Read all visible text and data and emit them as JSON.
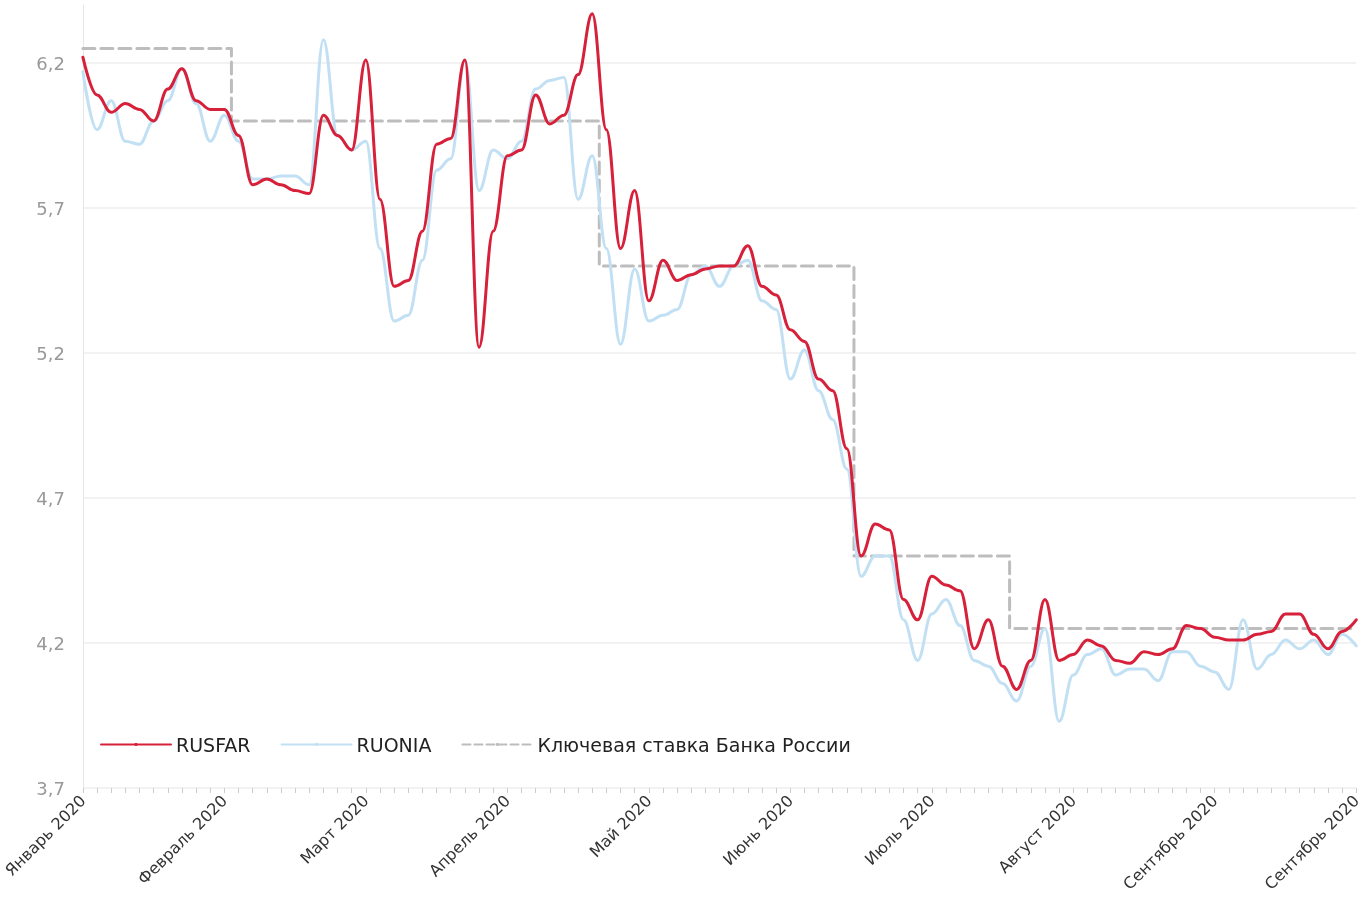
{
  "chart_data": {
    "type": "line",
    "categories": [
      "Январь 2020",
      null,
      null,
      null,
      null,
      null,
      null,
      null,
      null,
      null,
      "Февраль 2020",
      null,
      null,
      null,
      null,
      null,
      null,
      null,
      null,
      null,
      "Март 2020",
      null,
      null,
      null,
      null,
      null,
      null,
      null,
      null,
      null,
      "Апрель 2020",
      null,
      null,
      null,
      null,
      null,
      null,
      null,
      null,
      null,
      "Май 2020",
      null,
      null,
      null,
      null,
      null,
      null,
      null,
      null,
      null,
      "Июнь 2020",
      null,
      null,
      null,
      null,
      null,
      null,
      null,
      null,
      null,
      "Июль 2020",
      null,
      null,
      null,
      null,
      null,
      null,
      null,
      null,
      null,
      "Август 2020",
      null,
      null,
      null,
      null,
      null,
      null,
      null,
      null,
      null,
      "Сентябрь 2020",
      null,
      null,
      null,
      null,
      null,
      null,
      null,
      null,
      null,
      "Сентябрь 2020"
    ],
    "series": [
      {
        "name": "RUSFAR",
        "color": "#d7203a",
        "values": [
          6.22,
          6.09,
          6.03,
          6.06,
          6.04,
          6.0,
          6.11,
          6.18,
          6.07,
          6.04,
          6.04,
          5.95,
          5.78,
          5.8,
          5.78,
          5.76,
          5.75,
          6.02,
          5.95,
          5.9,
          6.21,
          5.73,
          5.43,
          5.45,
          5.62,
          5.92,
          5.94,
          6.21,
          5.22,
          5.62,
          5.88,
          5.9,
          6.09,
          5.99,
          6.02,
          6.16,
          6.37,
          5.97,
          5.56,
          5.76,
          5.38,
          5.52,
          5.45,
          5.47,
          5.49,
          5.5,
          5.5,
          5.57,
          5.43,
          5.4,
          5.28,
          5.24,
          5.11,
          5.07,
          4.87,
          4.5,
          4.61,
          4.59,
          4.35,
          4.28,
          4.43,
          4.4,
          4.38,
          4.18,
          4.28,
          4.12,
          4.04,
          4.14,
          4.35,
          4.14,
          4.16,
          4.21,
          4.19,
          4.14,
          4.13,
          4.17,
          4.16,
          4.18,
          4.26,
          4.25,
          4.22,
          4.21,
          4.21,
          4.23,
          4.24,
          4.3,
          4.3,
          4.23,
          4.18,
          4.24,
          4.28
        ]
      },
      {
        "name": "RUONIA",
        "color": "#c2e0f4",
        "values": [
          6.17,
          5.97,
          6.07,
          5.93,
          5.92,
          6.0,
          6.07,
          6.18,
          6.06,
          5.93,
          6.02,
          5.93,
          5.8,
          5.8,
          5.81,
          5.81,
          5.78,
          6.28,
          5.95,
          5.9,
          5.93,
          5.56,
          5.31,
          5.33,
          5.52,
          5.83,
          5.87,
          6.21,
          5.76,
          5.9,
          5.87,
          5.93,
          6.11,
          6.14,
          6.15,
          5.73,
          5.88,
          5.56,
          5.23,
          5.49,
          5.31,
          5.33,
          5.35,
          5.47,
          5.5,
          5.43,
          5.5,
          5.52,
          5.38,
          5.35,
          5.11,
          5.21,
          5.07,
          4.97,
          4.8,
          4.43,
          4.5,
          4.5,
          4.28,
          4.14,
          4.3,
          4.35,
          4.26,
          4.14,
          4.12,
          4.06,
          4.0,
          4.12,
          4.25,
          3.93,
          4.09,
          4.16,
          4.18,
          4.09,
          4.11,
          4.11,
          4.07,
          4.17,
          4.17,
          4.12,
          4.1,
          4.04,
          4.28,
          4.11,
          4.16,
          4.21,
          4.18,
          4.21,
          4.16,
          4.23,
          4.19
        ]
      },
      {
        "name": "Ключевая ставка Банка России",
        "color": "#bdbdbd",
        "type": "step",
        "line_style": "dashed",
        "values": [
          6.25,
          6.25,
          6.25,
          6.25,
          6.25,
          6.25,
          6.25,
          6.25,
          6.25,
          6.25,
          6.25,
          6.0,
          6.0,
          6.0,
          6.0,
          6.0,
          6.0,
          6.0,
          6.0,
          6.0,
          6.0,
          6.0,
          6.0,
          6.0,
          6.0,
          6.0,
          6.0,
          6.0,
          6.0,
          6.0,
          6.0,
          6.0,
          6.0,
          6.0,
          6.0,
          6.0,
          6.0,
          5.5,
          5.5,
          5.5,
          5.5,
          5.5,
          5.5,
          5.5,
          5.5,
          5.5,
          5.5,
          5.5,
          5.5,
          5.5,
          5.5,
          5.5,
          5.5,
          5.5,
          5.5,
          4.5,
          4.5,
          4.5,
          4.5,
          4.5,
          4.5,
          4.5,
          4.5,
          4.5,
          4.5,
          4.5,
          4.25,
          4.25,
          4.25,
          4.25,
          4.25,
          4.25,
          4.25,
          4.25,
          4.25,
          4.25,
          4.25,
          4.25,
          4.25,
          4.25,
          4.25,
          4.25,
          4.25,
          4.25,
          4.25,
          4.25,
          4.25,
          4.25,
          4.25,
          4.25,
          4.25
        ]
      }
    ],
    "ylim": [
      3.7,
      6.4
    ],
    "yticks": [
      {
        "value": 3.7,
        "label": "3,7"
      },
      {
        "value": 4.2,
        "label": "4,2"
      },
      {
        "value": 4.7,
        "label": "4,7"
      },
      {
        "value": 5.2,
        "label": "5,2"
      },
      {
        "value": 5.7,
        "label": "5,7"
      },
      {
        "value": 6.2,
        "label": "6,2"
      }
    ],
    "grid": "y",
    "legend": "bottom left",
    "marker": "none"
  }
}
